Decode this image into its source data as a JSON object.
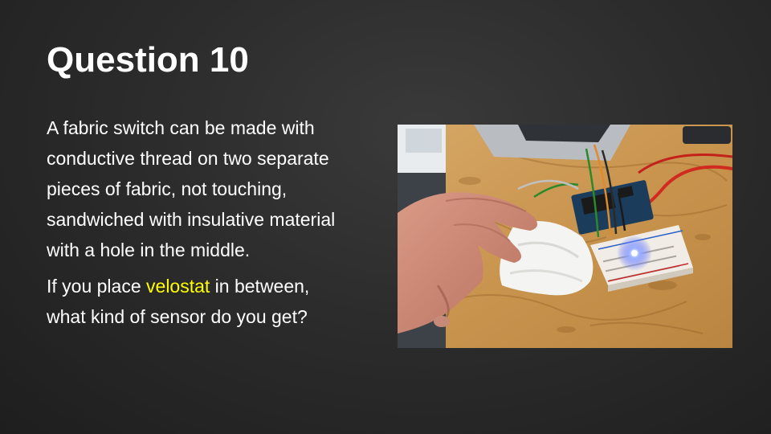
{
  "slide": {
    "title": "Question 10",
    "paragraph_1": "A fabric switch can be made with conductive thread on two separate pieces of fabric, not touching, sandwiched with insulative material with a hole in the middle.",
    "paragraph_2_before": "If you place ",
    "paragraph_2_highlight": "velostat",
    "paragraph_2_after": " in between, what kind of sensor do you get?",
    "highlight_color": "#ffff00",
    "text_color": "#ffffff"
  },
  "photo": {
    "subject": "hand pressing white fabric pad wired to breadboard with LED and Arduino on plywood table"
  }
}
